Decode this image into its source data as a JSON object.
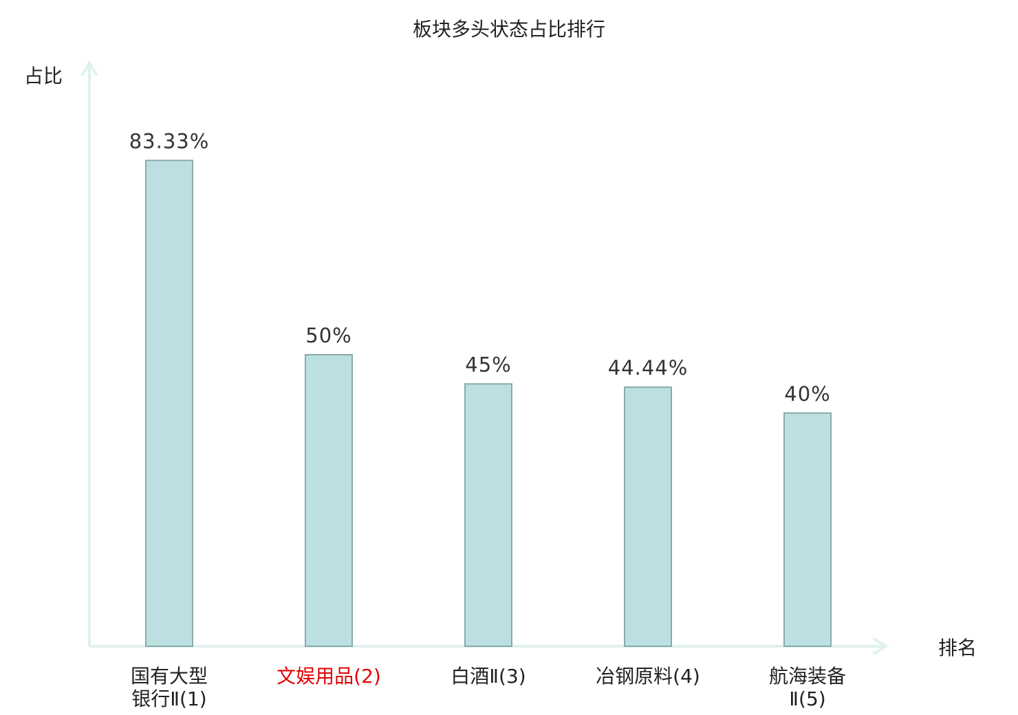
{
  "chart_data": {
    "type": "bar",
    "title": "板块多头状态占比排行",
    "ylabel": "占比",
    "xlabel": "排名",
    "categories": [
      {
        "name": "国有大型银行Ⅱ",
        "rank": "(1)",
        "line1": "国有大型",
        "line2": "银行Ⅱ(1)",
        "highlight": false
      },
      {
        "name": "文娱用品",
        "rank": "(2)",
        "line1": "文娱用品(2)",
        "line2": "",
        "highlight": true
      },
      {
        "name": "白酒Ⅱ",
        "rank": "(3)",
        "line1": "白酒Ⅱ(3)",
        "line2": "",
        "highlight": false
      },
      {
        "name": "冶钢原料",
        "rank": "(4)",
        "line1": "冶钢原料(4)",
        "line2": "",
        "highlight": false
      },
      {
        "name": "航海装备Ⅱ",
        "rank": "(5)",
        "line1": "航海装备",
        "line2": "Ⅱ(5)",
        "highlight": false
      }
    ],
    "values": [
      83.33,
      50,
      45,
      44.44,
      40
    ],
    "value_labels": [
      "83.33%",
      "50%",
      "45%",
      "44.44%",
      "40%"
    ],
    "ylim": [
      0,
      100
    ],
    "grid": false,
    "legend": "none"
  },
  "colors": {
    "bar_fill": "#bce0e2",
    "bar_stroke": "#8aa9aa",
    "axis": "#dff2ef",
    "text": "#222222",
    "value_text": "#333333",
    "highlight_text": "#e00000"
  }
}
